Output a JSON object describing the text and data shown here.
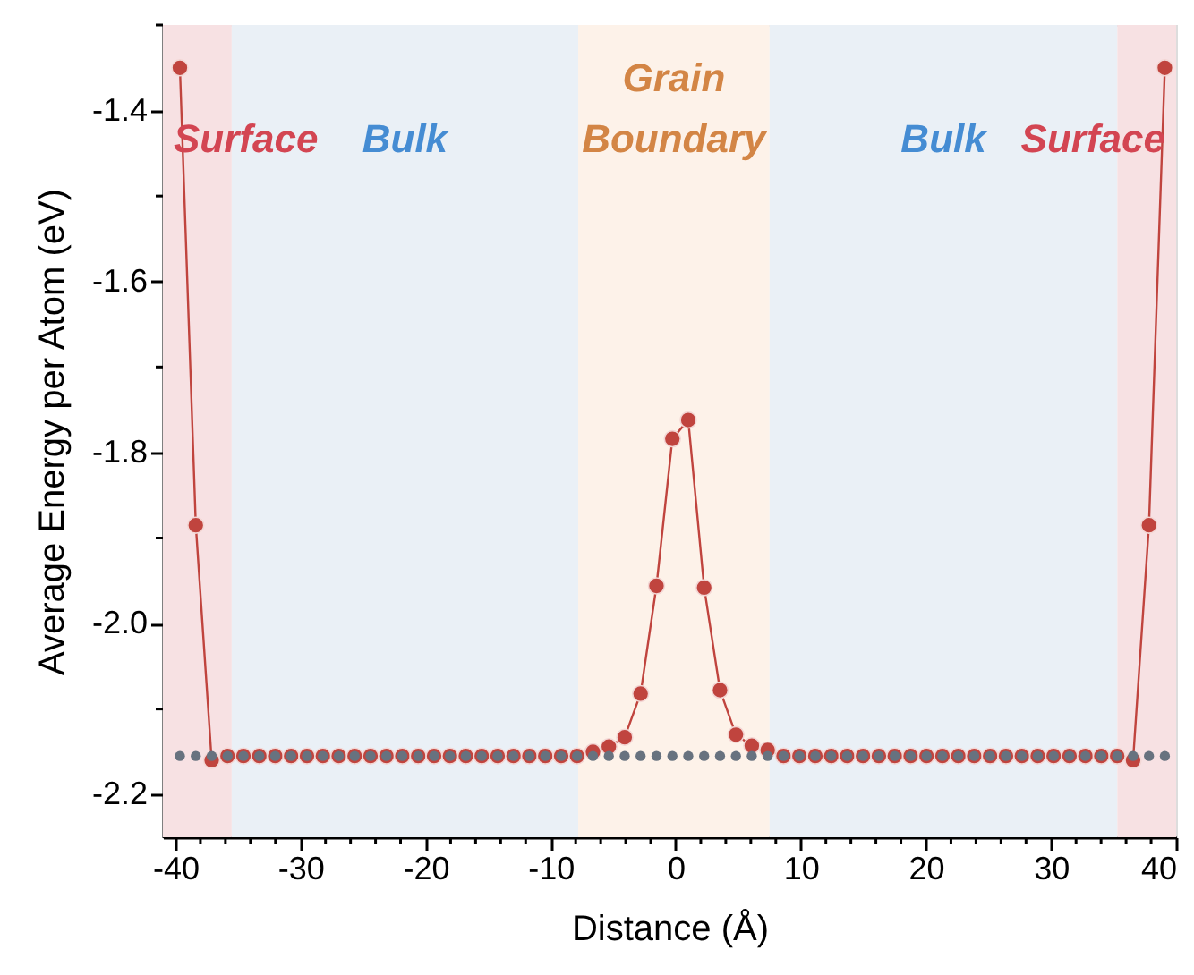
{
  "chart_data": {
    "type": "scatter",
    "xlabel": "Distance (Å)",
    "ylabel": "Average Energy per Atom (eV)",
    "x": [
      -39.64,
      -38.37,
      -37.1,
      -35.83,
      -34.56,
      -33.29,
      -32.02,
      -30.75,
      -29.48,
      -28.21,
      -26.94,
      -25.67,
      -24.4,
      -23.13,
      -21.86,
      -20.59,
      -19.32,
      -18.05,
      -16.78,
      -15.51,
      -14.24,
      -12.97,
      -11.7,
      -10.43,
      -9.16,
      -7.89,
      -6.62,
      -5.35,
      -4.08,
      -2.81,
      -1.54,
      -0.27,
      1.0,
      2.27,
      3.54,
      4.81,
      6.08,
      7.35,
      8.62,
      9.89,
      11.16,
      12.43,
      13.7,
      14.97,
      16.24,
      17.51,
      18.78,
      20.05,
      21.32,
      22.59,
      23.86,
      25.13,
      26.4,
      27.67,
      28.94,
      30.21,
      31.48,
      32.75,
      34.02,
      35.29,
      36.56,
      37.83,
      39.1
    ],
    "series": [
      {
        "type": "line",
        "color": "#c0443e",
        "marker": "circle",
        "values": [
          -1.35,
          -1.885,
          -2.16,
          -2.155,
          -2.155,
          -2.155,
          -2.155,
          -2.155,
          -2.155,
          -2.155,
          -2.155,
          -2.155,
          -2.155,
          -2.155,
          -2.155,
          -2.155,
          -2.155,
          -2.155,
          -2.155,
          -2.155,
          -2.155,
          -2.155,
          -2.155,
          -2.155,
          -2.155,
          -2.155,
          -2.15,
          -2.144,
          -2.133,
          -2.082,
          -1.956,
          -1.784,
          -1.762,
          -1.958,
          -2.078,
          -2.13,
          -2.143,
          -2.148,
          -2.155,
          -2.155,
          -2.155,
          -2.155,
          -2.155,
          -2.155,
          -2.155,
          -2.155,
          -2.155,
          -2.155,
          -2.155,
          -2.155,
          -2.155,
          -2.155,
          -2.155,
          -2.155,
          -2.155,
          -2.155,
          -2.155,
          -2.155,
          -2.155,
          -2.155,
          -2.16,
          -1.885,
          -1.35
        ]
      },
      {
        "type": "scatter",
        "color": "#67727f",
        "marker": "circle",
        "values": [
          -2.155,
          -2.155,
          -2.155,
          -2.155,
          -2.155,
          -2.155,
          -2.155,
          -2.155,
          -2.155,
          -2.155,
          -2.155,
          -2.155,
          -2.155,
          -2.155,
          -2.155,
          -2.155,
          -2.155,
          -2.155,
          -2.155,
          -2.155,
          -2.155,
          -2.155,
          -2.155,
          -2.155,
          -2.155,
          -2.155,
          -2.155,
          -2.155,
          -2.155,
          -2.155,
          -2.155,
          -2.155,
          -2.155,
          -2.155,
          -2.155,
          -2.155,
          -2.155,
          -2.155,
          -2.155,
          -2.155,
          -2.155,
          -2.155,
          -2.155,
          -2.155,
          -2.155,
          -2.155,
          -2.155,
          -2.155,
          -2.155,
          -2.155,
          -2.155,
          -2.155,
          -2.155,
          -2.155,
          -2.155,
          -2.155,
          -2.155,
          -2.155,
          -2.155,
          -2.155,
          -2.155,
          -2.155,
          -2.155
        ]
      }
    ],
    "xlim": [
      -41,
      40
    ],
    "xticks": [
      -40,
      {
        "value": -38,
        "label": null
      },
      {
        "value": -36,
        "label": null
      },
      {
        "value": -34,
        "label": null
      },
      {
        "value": -32,
        "label": null
      },
      -30,
      {
        "value": -28,
        "label": null
      },
      {
        "value": -26,
        "label": null
      },
      {
        "value": -24,
        "label": null
      },
      {
        "value": -22,
        "label": null
      },
      -20,
      {
        "value": -18,
        "label": null
      },
      {
        "value": -16,
        "label": null
      },
      {
        "value": -14,
        "label": null
      },
      {
        "value": -12,
        "label": null
      },
      -10,
      {
        "value": -8,
        "label": null
      },
      {
        "value": -6,
        "label": null
      },
      {
        "value": -4,
        "label": null
      },
      {
        "value": -2,
        "label": null
      },
      0,
      {
        "value": 2,
        "label": null
      },
      {
        "value": 4,
        "label": null
      },
      {
        "value": 6,
        "label": null
      },
      {
        "value": 8,
        "label": null
      },
      10,
      {
        "value": 12,
        "label": null
      },
      {
        "value": 14,
        "label": null
      },
      {
        "value": 16,
        "label": null
      },
      {
        "value": 18,
        "label": null
      },
      20,
      {
        "value": 22,
        "label": null
      },
      {
        "value": 24,
        "label": null
      },
      {
        "value": 26,
        "label": null
      },
      {
        "value": 28,
        "label": null
      },
      30,
      {
        "value": 32,
        "label": null
      },
      {
        "value": 34,
        "label": null
      },
      {
        "value": 36,
        "label": null
      },
      {
        "value": 38,
        "label": null
      },
      40
    ],
    "ylim": [
      -2.25,
      -1.3
    ],
    "yticks": [
      {
        "value": -2.2,
        "label": "-2.2"
      },
      {
        "value": -2.1,
        "label": null
      },
      {
        "value": -2.0,
        "label": "-2.0"
      },
      {
        "value": -1.9,
        "label": null
      },
      {
        "value": -1.8,
        "label": "-1.8"
      },
      {
        "value": -1.7,
        "label": null
      },
      {
        "value": -1.6,
        "label": "-1.6"
      },
      {
        "value": -1.5,
        "label": null
      },
      {
        "value": -1.4,
        "label": "-1.4"
      },
      {
        "value": -1.3,
        "label": null
      }
    ],
    "bands": [
      {
        "axis": "x",
        "from": -41,
        "to": -35.5,
        "label": "Surface",
        "color": "#f7e1e3"
      },
      {
        "axis": "x",
        "from": -35.5,
        "to": -7.8,
        "label": "Bulk",
        "color": "#eaf0f6"
      },
      {
        "axis": "x",
        "from": -7.8,
        "to": 7.5,
        "label": "Grain Boundary",
        "color": "#fdf2e9"
      },
      {
        "axis": "x",
        "from": 7.5,
        "to": 35.3,
        "label": "Bulk",
        "color": "#eaf0f6"
      },
      {
        "axis": "x",
        "from": 35.3,
        "to": 40,
        "label": "Surface",
        "color": "#f7e1e3"
      }
    ]
  }
}
